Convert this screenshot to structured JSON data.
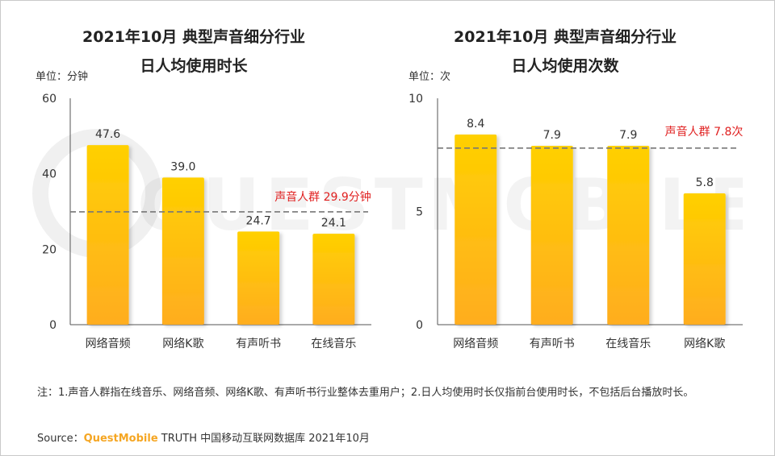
{
  "chart_data": [
    {
      "type": "bar",
      "title": "2021年10月 典型声音细分行业",
      "subtitle": "日人均使用时长",
      "unit_label": "单位：分钟",
      "categories": [
        "网络音频",
        "网络K歌",
        "有声听书",
        "在线音乐"
      ],
      "values": [
        47.6,
        39.0,
        24.7,
        24.1
      ],
      "value_labels": [
        "47.6",
        "39.0",
        "24.7",
        "24.1"
      ],
      "ylim": [
        0,
        60
      ],
      "yticks": [
        0,
        20,
        40,
        60
      ],
      "reference_line": {
        "value": 29.9,
        "label": "声音人群 29.9分钟",
        "color": "#e02020",
        "style": "dashed"
      },
      "bar_color_top": "#ffd000",
      "bar_color_bottom": "#ffad20",
      "grid": false
    },
    {
      "type": "bar",
      "title": "2021年10月 典型声音细分行业",
      "subtitle": "日人均使用次数",
      "unit_label": "单位：次",
      "categories": [
        "网络音频",
        "有声听书",
        "在线音乐",
        "网络K歌"
      ],
      "values": [
        8.4,
        7.9,
        7.9,
        5.8
      ],
      "value_labels": [
        "8.4",
        "7.9",
        "7.9",
        "5.8"
      ],
      "ylim": [
        0,
        10
      ],
      "yticks": [
        0,
        5,
        10
      ],
      "reference_line": {
        "value": 7.8,
        "label": "声音人群 7.8次",
        "color": "#e02020",
        "style": "dashed"
      },
      "bar_color_top": "#ffd000",
      "bar_color_bottom": "#ffad20",
      "grid": false
    }
  ],
  "footnote": "注：1.声音人群指在线音乐、网络音频、网络K歌、有声听书行业整体去重用户；2.日人均使用时长仅指前台使用时长，不包括后台播放时长。",
  "source": {
    "prefix": "Source：",
    "brand": "QuestMobile",
    "rest": " TRUTH 中国移动互联网数据库 2021年10月"
  },
  "watermark_text": "QUESTMOBILE"
}
